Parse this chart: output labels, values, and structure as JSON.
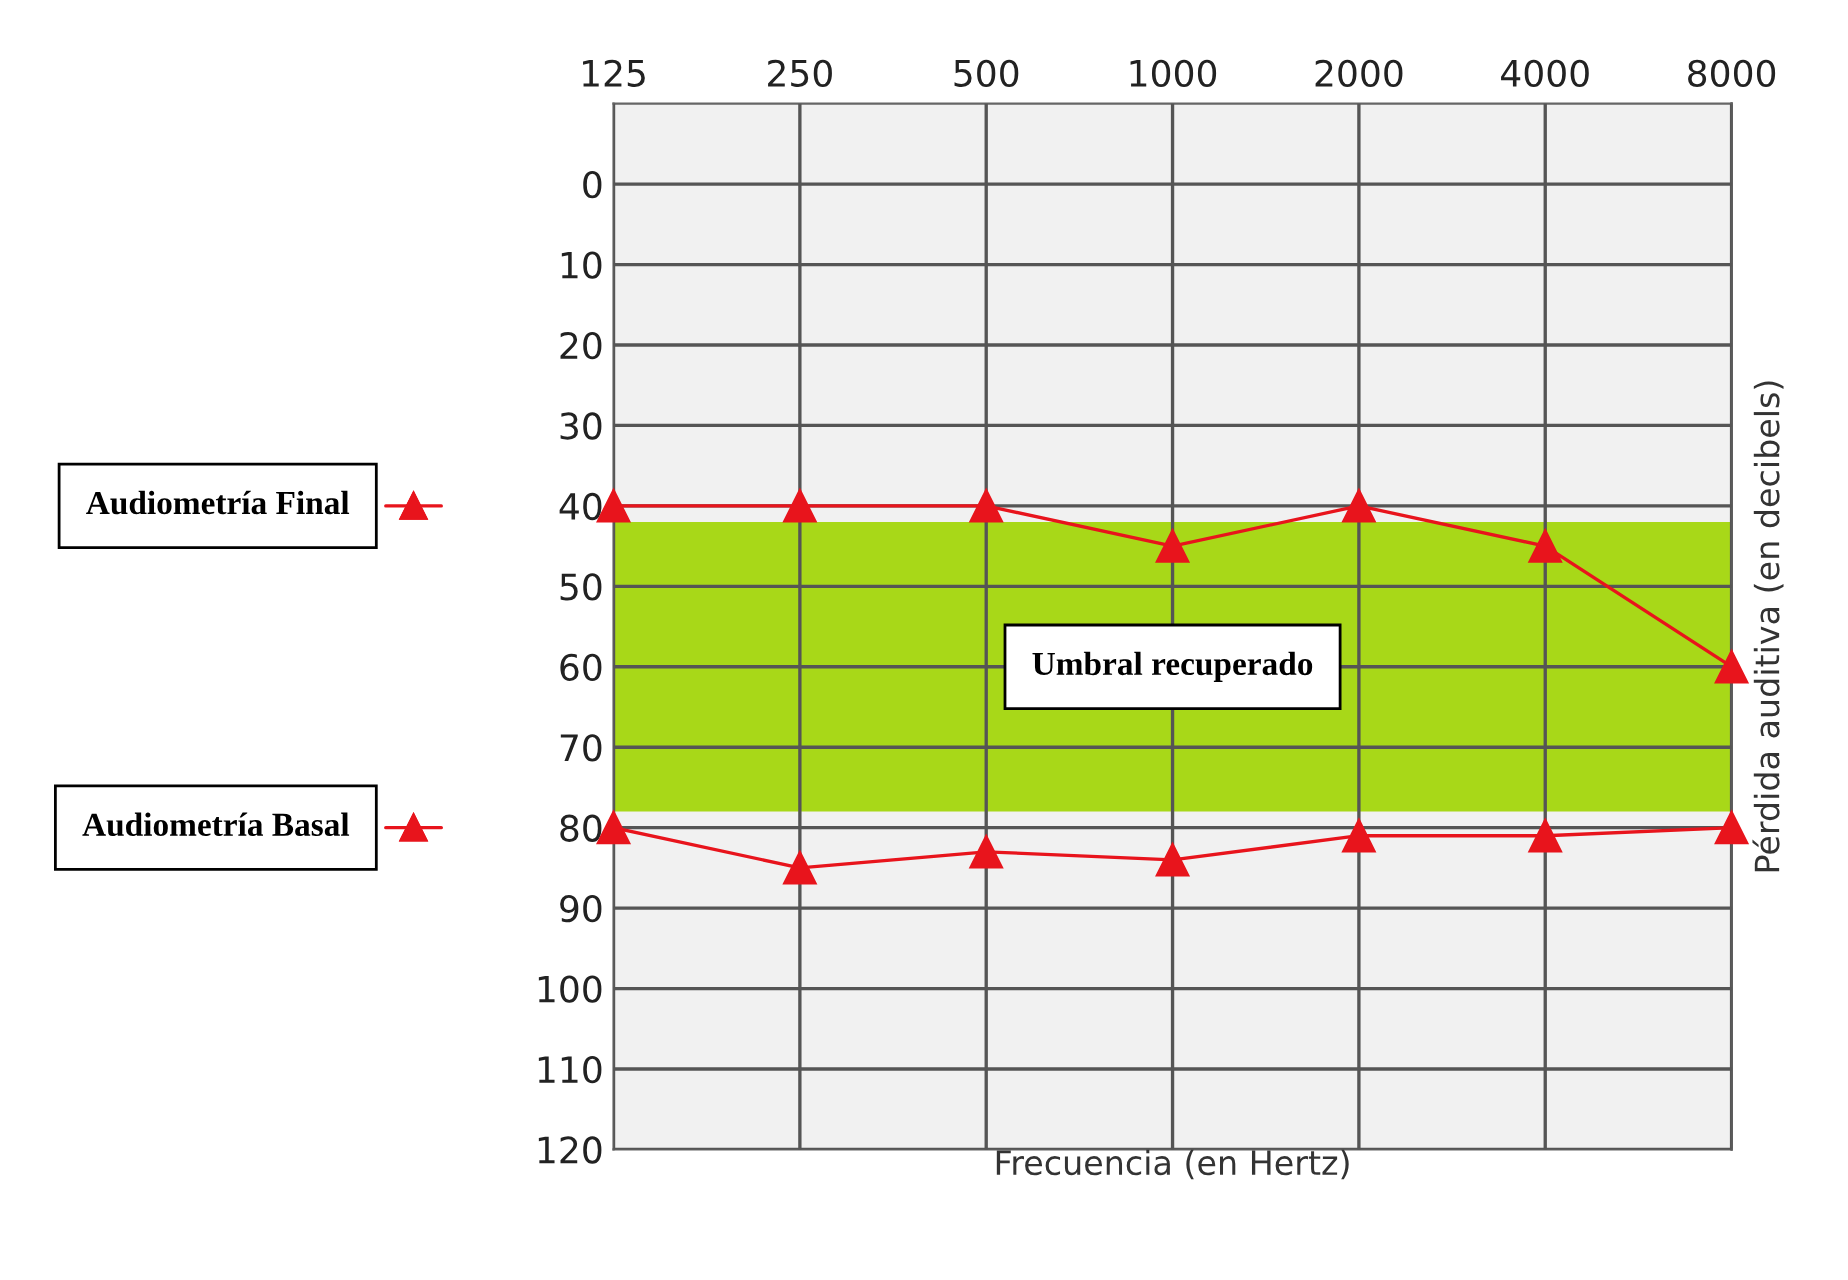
{
  "chart_data": {
    "type": "line",
    "categories": [
      "125",
      "250",
      "500",
      "1000",
      "2000",
      "4000",
      "8000"
    ],
    "series": [
      {
        "name": "Audiometría Final",
        "color": "#e8141c",
        "values": [
          40,
          40,
          40,
          45,
          40,
          45,
          60
        ]
      },
      {
        "name": "Audiometría Basal",
        "color": "#e8141c",
        "values": [
          80,
          85,
          83,
          84,
          81,
          81,
          80
        ]
      }
    ],
    "xlabel": "Frecuencia (en Hertz)",
    "ylabel": "Pérdida auditiva (en decibels)",
    "ylim": [
      120,
      -10
    ],
    "yticks": [
      0,
      10,
      20,
      30,
      40,
      50,
      60,
      70,
      80,
      90,
      100,
      110,
      120
    ],
    "bands": [
      {
        "axis": "y",
        "from": 42,
        "to": 78,
        "label": "Umbral recuperado",
        "color": "#a8d818"
      }
    ],
    "grid": true,
    "marker": "triangle",
    "line_style": "solid",
    "legend": "left"
  }
}
